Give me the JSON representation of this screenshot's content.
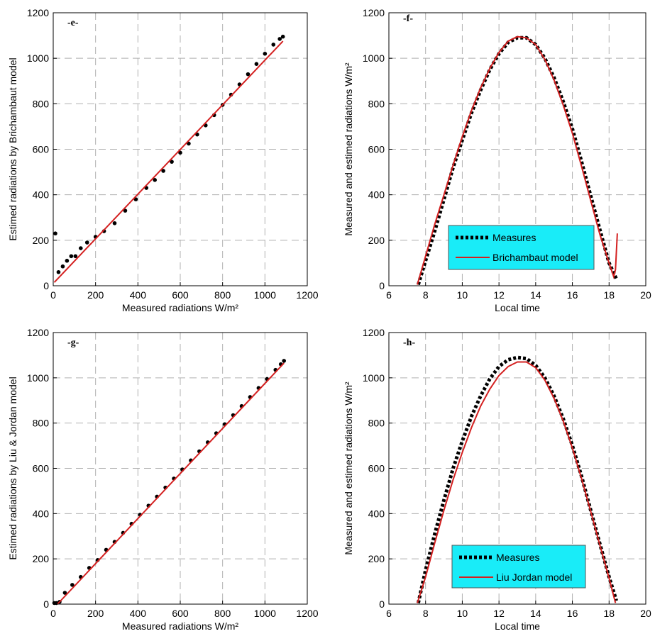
{
  "colors": {
    "measures": "#000000",
    "model": "#d42020",
    "legend_bg": "#19ecf8",
    "grid": "#b0b0b0"
  },
  "chart_data": [
    {
      "type": "scatter",
      "panel_label": "-e-",
      "xlabel": "Measured radiations W/m²",
      "ylabel": "Estimed radiations by Brichambaut model",
      "xlim": [
        0,
        1200
      ],
      "ylim": [
        0,
        1200
      ],
      "xticks": [
        0,
        200,
        400,
        600,
        800,
        1000,
        1200
      ],
      "yticks": [
        0,
        200,
        400,
        600,
        800,
        1000,
        1200
      ],
      "grid": true,
      "series": [
        {
          "style": "points",
          "x": [
            10,
            25,
            45,
            65,
            85,
            105,
            130,
            160,
            200,
            240,
            290,
            340,
            390,
            440,
            480,
            520,
            560,
            600,
            640,
            680,
            720,
            760,
            800,
            840,
            880,
            920,
            960,
            1000,
            1040,
            1070,
            1085
          ],
          "y": [
            230,
            60,
            85,
            110,
            130,
            130,
            165,
            190,
            215,
            240,
            275,
            330,
            380,
            430,
            465,
            505,
            545,
            585,
            625,
            665,
            705,
            750,
            795,
            840,
            885,
            930,
            975,
            1020,
            1060,
            1085,
            1095
          ]
        },
        {
          "style": "line",
          "x": [
            5,
            1085
          ],
          "y": [
            15,
            1075
          ]
        }
      ]
    },
    {
      "type": "line",
      "panel_label": "-f-",
      "xlabel": "Local time",
      "ylabel": "Measured and estimed radiations W/m²",
      "xlim": [
        6,
        20
      ],
      "ylim": [
        0,
        1200
      ],
      "xticks": [
        6,
        8,
        10,
        12,
        14,
        16,
        18,
        20
      ],
      "yticks": [
        0,
        200,
        400,
        600,
        800,
        1000,
        1200
      ],
      "grid": true,
      "legend_position": "lower-center",
      "series": [
        {
          "name": "Measures",
          "style": "dotted",
          "x": [
            7.6,
            8.0,
            8.5,
            9.0,
            9.5,
            10.0,
            10.5,
            11.0,
            11.5,
            12.0,
            12.5,
            13.0,
            13.5,
            14.0,
            14.5,
            15.0,
            15.5,
            16.0,
            16.5,
            17.0,
            17.5,
            18.0,
            18.4
          ],
          "y": [
            5,
            110,
            240,
            380,
            520,
            640,
            760,
            860,
            950,
            1020,
            1070,
            1090,
            1090,
            1060,
            1000,
            915,
            810,
            690,
            545,
            395,
            245,
            100,
            30
          ]
        },
        {
          "name": "Brichambaut model",
          "style": "solid",
          "x": [
            7.55,
            8.0,
            8.5,
            9.0,
            9.5,
            10.0,
            10.5,
            11.0,
            11.5,
            12.0,
            12.5,
            13.0,
            13.5,
            14.0,
            14.5,
            15.0,
            15.5,
            16.0,
            16.5,
            17.0,
            17.5,
            18.0,
            18.25,
            18.35,
            18.45
          ],
          "y": [
            5,
            130,
            270,
            400,
            530,
            655,
            770,
            870,
            955,
            1025,
            1075,
            1095,
            1090,
            1060,
            995,
            905,
            795,
            670,
            525,
            375,
            225,
            100,
            40,
            70,
            230
          ]
        }
      ]
    },
    {
      "type": "scatter",
      "panel_label": "-g-",
      "xlabel": "Measured radiations W/m²",
      "ylabel": "Estimed radiations by Liu & Jordan model",
      "xlim": [
        0,
        1200
      ],
      "ylim": [
        0,
        1200
      ],
      "xticks": [
        0,
        200,
        400,
        600,
        800,
        1000,
        1200
      ],
      "yticks": [
        0,
        200,
        400,
        600,
        800,
        1000,
        1200
      ],
      "grid": true,
      "series": [
        {
          "style": "points",
          "x": [
            5,
            15,
            30,
            55,
            90,
            130,
            170,
            210,
            250,
            290,
            330,
            370,
            410,
            450,
            490,
            530,
            570,
            610,
            650,
            690,
            730,
            770,
            810,
            850,
            890,
            930,
            970,
            1010,
            1050,
            1075,
            1090
          ],
          "y": [
            5,
            5,
            10,
            50,
            85,
            120,
            160,
            195,
            240,
            275,
            315,
            355,
            395,
            435,
            475,
            515,
            555,
            595,
            635,
            675,
            715,
            755,
            795,
            835,
            875,
            915,
            955,
            995,
            1035,
            1060,
            1075
          ]
        },
        {
          "style": "line",
          "x": [
            20,
            1090
          ],
          "y": [
            0,
            1065
          ]
        }
      ]
    },
    {
      "type": "line",
      "panel_label": "-h-",
      "xlabel": "Local time",
      "ylabel": "Measured and estimed radiations W/m²",
      "xlim": [
        6,
        20
      ],
      "ylim": [
        0,
        1200
      ],
      "xticks": [
        6,
        8,
        10,
        12,
        14,
        16,
        18,
        20
      ],
      "yticks": [
        0,
        200,
        400,
        600,
        800,
        1000,
        1200
      ],
      "grid": true,
      "legend_position": "lower-center",
      "series": [
        {
          "name": "Measures",
          "style": "dotted",
          "x": [
            7.6,
            8.0,
            8.5,
            9.0,
            9.5,
            10.0,
            10.5,
            11.0,
            11.5,
            12.0,
            12.5,
            13.0,
            13.5,
            14.0,
            14.5,
            15.0,
            15.5,
            16.0,
            16.5,
            17.0,
            17.5,
            18.0,
            18.4
          ],
          "y": [
            5,
            150,
            310,
            460,
            600,
            720,
            830,
            920,
            995,
            1050,
            1080,
            1090,
            1085,
            1055,
            1000,
            920,
            820,
            700,
            565,
            415,
            265,
            120,
            15
          ]
        },
        {
          "name": "Liu Jordan model",
          "style": "solid",
          "x": [
            7.55,
            8.0,
            8.5,
            9.0,
            9.5,
            10.0,
            10.5,
            11.0,
            11.5,
            12.0,
            12.5,
            13.0,
            13.5,
            14.0,
            14.5,
            15.0,
            15.5,
            16.0,
            16.5,
            17.0,
            17.5,
            18.0,
            18.35
          ],
          "y": [
            5,
            120,
            270,
            415,
            550,
            670,
            780,
            875,
            950,
            1010,
            1050,
            1070,
            1070,
            1045,
            990,
            910,
            810,
            690,
            555,
            410,
            260,
            115,
            5
          ]
        }
      ]
    }
  ]
}
